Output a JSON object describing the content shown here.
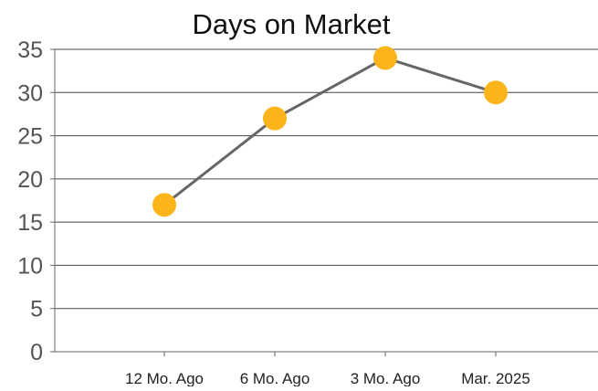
{
  "chart_data": {
    "type": "line",
    "title": "Days on Market",
    "xlabel": "",
    "ylabel": "",
    "categories": [
      "12 Mo. Ago",
      "6 Mo. Ago",
      "3 Mo. Ago",
      "Mar. 2025"
    ],
    "series": [
      {
        "values": [
          17,
          27,
          34,
          30
        ]
      }
    ],
    "ylim": [
      0,
      35
    ],
    "yticks": [
      0,
      5,
      10,
      15,
      20,
      25,
      30,
      35
    ],
    "grid": true,
    "legend": "none",
    "colors": {
      "line": "#666666",
      "marker": "#FBB41A",
      "grid": "#444444",
      "axis": "#666666"
    }
  }
}
